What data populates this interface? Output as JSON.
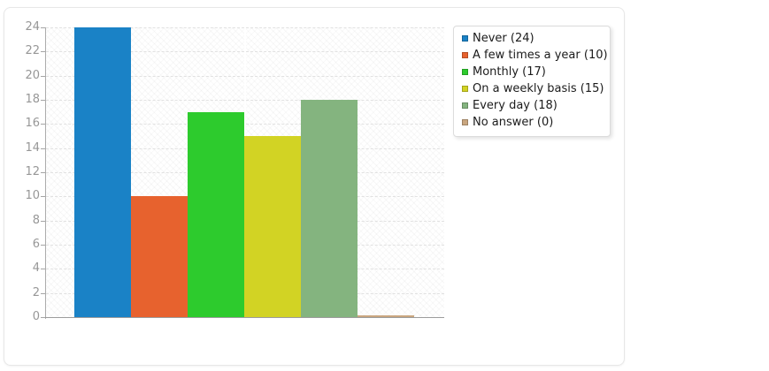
{
  "page": {
    "background": "#ffffff"
  },
  "card": {
    "border_color": "#e7e7e7"
  },
  "chart_data": {
    "type": "bar",
    "title": "",
    "xlabel": "",
    "ylabel": "",
    "categories": [
      "Never",
      "A few times a year",
      "Monthly",
      "On a weekly basis",
      "Every day",
      "No answer"
    ],
    "values": [
      24,
      10,
      17,
      15,
      18,
      0
    ],
    "colors": [
      "#1a82c6",
      "#e7622e",
      "#2dcb2d",
      "#d2d324",
      "#84b47f",
      "#c9a67f"
    ],
    "legend_labels": [
      "Never (24)",
      "A few times a year (10)",
      "Monthly (17)",
      "On a weekly basis (15)",
      "Every day (18)",
      "No answer (0)"
    ],
    "ylim": [
      0,
      24
    ],
    "yticks": [
      0,
      2,
      4,
      6,
      8,
      10,
      12,
      14,
      16,
      18,
      20,
      22,
      24
    ],
    "grid": "horizontal-dashed",
    "legend_position": "right",
    "plot_background": "diagonal-hatch"
  }
}
